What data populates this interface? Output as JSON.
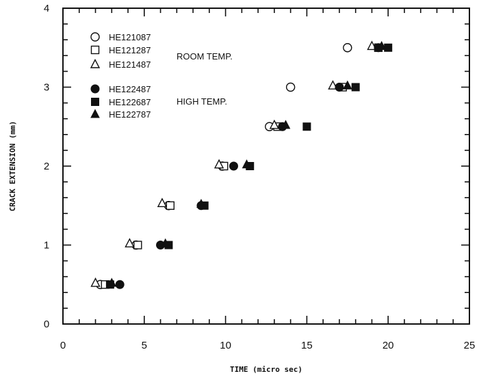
{
  "chart_data": {
    "type": "scatter",
    "title": "",
    "xlabel": "TIME (micro sec)",
    "ylabel": "CRACK EXTENSION (mm)",
    "xlim": [
      0,
      25
    ],
    "ylim": [
      0,
      4
    ],
    "xticks": [
      "0",
      "5",
      "10",
      "15",
      "20",
      "25"
    ],
    "yticks": [
      "0",
      "1",
      "2",
      "3",
      "4"
    ],
    "grid": false,
    "legend_position": "top-left",
    "group_labels": [
      "ROOM TEMP.",
      "HIGH TEMP."
    ],
    "series": [
      {
        "name": "HE121087",
        "marker": "circle-open",
        "points": [
          [
            2.3,
            0.5
          ],
          [
            4.5,
            1.0
          ],
          [
            6.5,
            1.5
          ],
          [
            9.8,
            2.0
          ],
          [
            12.7,
            2.5
          ],
          [
            14.0,
            3.0
          ],
          [
            17.5,
            3.5
          ]
        ]
      },
      {
        "name": "HE121287",
        "marker": "square-open",
        "points": [
          [
            2.6,
            0.5
          ],
          [
            4.6,
            1.0
          ],
          [
            6.6,
            1.5
          ],
          [
            9.9,
            2.0
          ],
          [
            13.2,
            2.5
          ],
          [
            17.2,
            3.0
          ],
          [
            19.4,
            3.5
          ]
        ]
      },
      {
        "name": "HE121487",
        "marker": "triangle-open",
        "points": [
          [
            2.0,
            0.52
          ],
          [
            4.1,
            1.02
          ],
          [
            6.1,
            1.53
          ],
          [
            9.6,
            2.02
          ],
          [
            13.0,
            2.52
          ],
          [
            16.6,
            3.02
          ],
          [
            19.0,
            3.52
          ]
        ]
      },
      {
        "name": "HE122487",
        "marker": "circle-filled",
        "points": [
          [
            3.5,
            0.5
          ],
          [
            6.0,
            1.0
          ],
          [
            8.5,
            1.5
          ],
          [
            10.5,
            2.0
          ],
          [
            13.5,
            2.5
          ],
          [
            17.0,
            3.0
          ],
          [
            19.4,
            3.5
          ]
        ]
      },
      {
        "name": "HE122687",
        "marker": "square-filled",
        "points": [
          [
            2.9,
            0.5
          ],
          [
            6.5,
            1.0
          ],
          [
            8.7,
            1.5
          ],
          [
            11.5,
            2.0
          ],
          [
            15.0,
            2.5
          ],
          [
            18.0,
            3.0
          ],
          [
            20.0,
            3.5
          ]
        ]
      },
      {
        "name": "HE122787",
        "marker": "triangle-filled",
        "points": [
          [
            3.0,
            0.52
          ],
          [
            6.3,
            1.02
          ],
          [
            8.5,
            1.52
          ],
          [
            11.3,
            2.02
          ],
          [
            13.7,
            2.52
          ],
          [
            17.5,
            3.02
          ],
          [
            19.6,
            3.52
          ]
        ]
      }
    ]
  }
}
